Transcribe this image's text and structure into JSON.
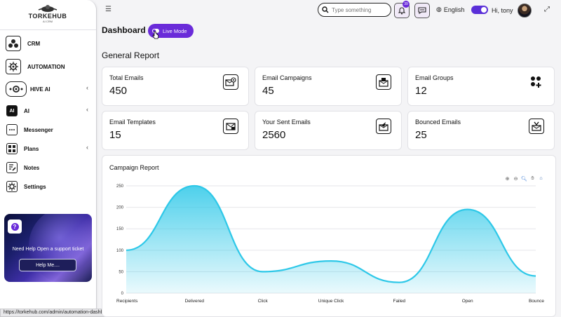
{
  "sidebar": {
    "logo_text": "TORKEHUB",
    "logo_sub": "AI CRM",
    "items": [
      {
        "label": "CRM",
        "icon": "crm-icon"
      },
      {
        "label": "AUTOMATION",
        "icon": "automation-icon"
      },
      {
        "label": "HIVE AI",
        "icon": "hive-ai-icon"
      },
      {
        "label": "AI",
        "icon": "ai-icon"
      },
      {
        "label": "Messenger",
        "icon": "messenger-icon"
      },
      {
        "label": "Plans",
        "icon": "plans-icon"
      },
      {
        "label": "Notes",
        "icon": "notes-icon"
      },
      {
        "label": "Settings",
        "icon": "settings-icon"
      }
    ],
    "help": {
      "text": "Need Help Open a support ticket",
      "button": "Help Me....",
      "icon": "question-icon"
    }
  },
  "statusbar": {
    "url": "https://torkehub.com/admin/automation-dashboard"
  },
  "header": {
    "search_placeholder": "Type something",
    "notif_count": "39",
    "language": "English",
    "greeting": "Hi, tony"
  },
  "page": {
    "title": "Dashboard",
    "live_mode": "Live Mode",
    "section_title": "General Report"
  },
  "cards": [
    {
      "label": "Total Emails",
      "value": "450",
      "icon": "email-at-icon"
    },
    {
      "label": "Email Campaigns",
      "value": "45",
      "icon": "email-campaign-icon"
    },
    {
      "label": "Email Groups",
      "value": "12",
      "icon": "email-groups-icon"
    },
    {
      "label": "Email Templates",
      "value": "15",
      "icon": "email-template-icon"
    },
    {
      "label": "Your Sent Emails",
      "value": "2560",
      "icon": "sent-email-icon"
    },
    {
      "label": "Bounced Emails",
      "value": "25",
      "icon": "bounced-email-icon"
    }
  ],
  "chart_title": "Campaign Report",
  "chart_data": {
    "type": "area",
    "title": "Campaign Report",
    "categories": [
      "Recipients",
      "Delivered",
      "Click",
      "Unique Click",
      "Failed",
      "Open",
      "Bounce"
    ],
    "values": [
      100,
      250,
      50,
      75,
      25,
      195,
      40
    ],
    "ylim": [
      0,
      250
    ],
    "yticks": [
      0,
      50,
      100,
      150,
      200,
      250
    ],
    "grid": true,
    "color": "#2ec8e8"
  },
  "colors": {
    "accent": "#6a2bd9",
    "chart_line": "#2ec8e8"
  }
}
